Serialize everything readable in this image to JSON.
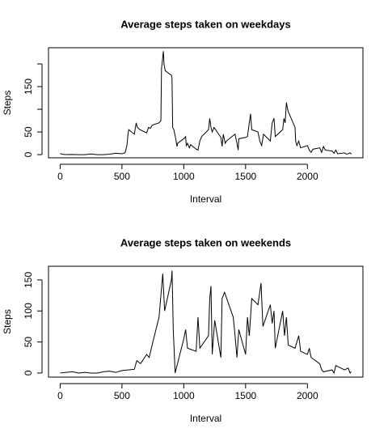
{
  "chart_data": [
    {
      "type": "line",
      "title": "Average steps taken on weekdays",
      "xlabel": "Interval",
      "ylabel": "Steps",
      "color": "#000000",
      "x": [
        0,
        25,
        50,
        100,
        150,
        200,
        250,
        300,
        350,
        400,
        450,
        500,
        525,
        540,
        550,
        555,
        600,
        615,
        625,
        645,
        700,
        715,
        730,
        745,
        800,
        815,
        820,
        830,
        835,
        840,
        850,
        900,
        905,
        910,
        920,
        935,
        945,
        950,
        1000,
        1015,
        1020,
        1030,
        1045,
        1055,
        1100,
        1115,
        1130,
        1145,
        1200,
        1210,
        1220,
        1230,
        1245,
        1300,
        1310,
        1320,
        1335,
        1345,
        1400,
        1415,
        1430,
        1440,
        1445,
        1500,
        1515,
        1530,
        1540,
        1550,
        1600,
        1615,
        1630,
        1645,
        1700,
        1715,
        1730,
        1740,
        1800,
        1810,
        1820,
        1830,
        1840,
        1845,
        1900,
        1905,
        1915,
        1930,
        1945,
        2000,
        2015,
        2030,
        2045,
        2100,
        2115,
        2130,
        2145,
        2200,
        2215,
        2230,
        2245,
        2300,
        2315,
        2330,
        2345,
        2355
      ],
      "values": [
        2.3,
        0.5,
        0.2,
        0.4,
        0,
        0,
        1.5,
        0,
        0,
        1,
        3,
        2,
        4,
        20,
        48,
        55,
        45,
        70,
        60,
        55,
        48,
        60,
        58,
        65,
        70,
        75,
        190,
        215,
        228,
        200,
        185,
        175,
        168,
        60,
        55,
        35,
        18,
        25,
        35,
        40,
        20,
        25,
        15,
        22,
        12,
        10,
        30,
        40,
        55,
        80,
        60,
        50,
        60,
        38,
        18,
        45,
        25,
        30,
        42,
        45,
        25,
        10,
        35,
        38,
        40,
        70,
        90,
        55,
        50,
        30,
        20,
        45,
        30,
        70,
        80,
        40,
        55,
        80,
        70,
        115,
        100,
        95,
        60,
        30,
        20,
        30,
        15,
        20,
        10,
        5,
        12,
        15,
        5,
        18,
        10,
        8,
        3,
        10,
        2,
        4,
        1,
        2,
        4,
        1
      ],
      "xlim": [
        -94.2,
        2449.2
      ],
      "xticks": [
        0,
        500,
        1000,
        1500,
        2000
      ],
      "ylim": [
        -7,
        235.7
      ],
      "yticks": [
        0,
        50,
        {
          "value": 100
        },
        150,
        {
          "value": 200
        }
      ]
    },
    {
      "type": "line",
      "title": "Average steps taken on weekends",
      "xlabel": "Interval",
      "ylabel": "Steps",
      "color": "#000000",
      "x": [
        0,
        50,
        100,
        150,
        200,
        250,
        300,
        350,
        400,
        450,
        500,
        550,
        600,
        620,
        650,
        700,
        720,
        750,
        800,
        830,
        845,
        900,
        905,
        915,
        930,
        1000,
        1015,
        1030,
        1100,
        1115,
        1130,
        1200,
        1210,
        1220,
        1230,
        1250,
        1300,
        1310,
        1330,
        1400,
        1415,
        1430,
        1445,
        1500,
        1515,
        1530,
        1550,
        1600,
        1625,
        1640,
        1700,
        1715,
        1730,
        1740,
        1800,
        1815,
        1830,
        1845,
        1900,
        1930,
        1945,
        2000,
        2015,
        2030,
        2100,
        2115,
        2130,
        2200,
        2215,
        2230,
        2300,
        2330,
        2345,
        2355
      ],
      "values": [
        0,
        1,
        2,
        0,
        1,
        0,
        0,
        2,
        3,
        1,
        4,
        5,
        6,
        20,
        15,
        30,
        25,
        50,
        90,
        160,
        100,
        150,
        165,
        70,
        0,
        55,
        70,
        40,
        35,
        90,
        40,
        60,
        120,
        140,
        30,
        85,
        25,
        120,
        130,
        90,
        60,
        25,
        70,
        30,
        90,
        60,
        120,
        110,
        145,
        75,
        110,
        80,
        100,
        40,
        100,
        60,
        90,
        45,
        40,
        60,
        35,
        30,
        40,
        25,
        15,
        5,
        2,
        5,
        0,
        12,
        5,
        8,
        0,
        2
      ],
      "xlim": [
        -94.2,
        2449.2
      ],
      "xticks": [
        0,
        500,
        1000,
        1500,
        2000
      ],
      "ylim": [
        -6.6,
        172
      ],
      "yticks": [
        0,
        50,
        100,
        150
      ]
    }
  ]
}
